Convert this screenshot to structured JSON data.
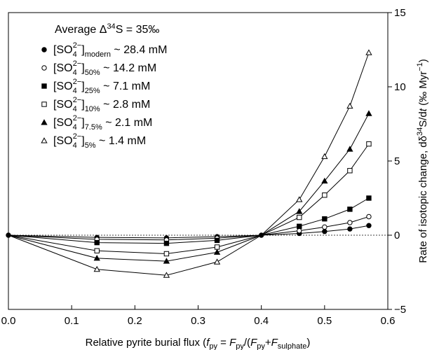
{
  "chart_data": {
    "type": "line",
    "annotation": "Average Δ³⁴S = 35‰",
    "xlabel": "Relative pyrite burial flux (f_py = F_py/(F_py+F_sulphate)",
    "ylabel": "Rate of isotopic change, dδ³⁴S/dt (‰ Myr⁻¹)",
    "xlim": [
      0.0,
      0.6
    ],
    "ylim": [
      -5,
      15
    ],
    "x_ticks": [
      "0.0",
      "0.1",
      "0.2",
      "0.3",
      "0.4",
      "0.5",
      "0.6"
    ],
    "y_ticks": [
      "−5",
      "0",
      "5",
      "10",
      "15"
    ],
    "y_axis_side": "right",
    "reference_line": {
      "y": 0,
      "style": "dotted"
    },
    "grid": false,
    "x": [
      0.0,
      0.14,
      0.25,
      0.33,
      0.4,
      0.46,
      0.5,
      0.54,
      0.57
    ],
    "series": [
      {
        "name": "[SO4 2−]modern ~ 28.4 mM",
        "marker": "filled-circle",
        "values": [
          0,
          -0.15,
          -0.18,
          -0.1,
          0,
          0.12,
          0.25,
          0.42,
          0.65
        ]
      },
      {
        "name": "[SO4 2−]50% ~ 14.2 mM",
        "marker": "open-circle",
        "values": [
          0,
          -0.28,
          -0.32,
          -0.2,
          0,
          0.3,
          0.55,
          0.85,
          1.25
        ]
      },
      {
        "name": "[SO4 2−]25% ~ 7.1 mM",
        "marker": "filled-square",
        "values": [
          0,
          -0.5,
          -0.55,
          -0.35,
          0,
          0.6,
          1.1,
          1.75,
          2.5
        ]
      },
      {
        "name": "[SO4 2−]10% ~ 2.8 mM",
        "marker": "open-square",
        "values": [
          0,
          -1.05,
          -1.25,
          -0.8,
          0,
          1.2,
          2.7,
          4.35,
          6.15
        ]
      },
      {
        "name": "[SO4 2−]7.5% ~ 2.1 mM",
        "marker": "filled-triangle",
        "values": [
          0,
          -1.55,
          -1.75,
          -1.15,
          0,
          1.6,
          3.65,
          5.8,
          8.2
        ]
      },
      {
        "name": "[SO4 2−]5% ~ 1.4 mM",
        "marker": "open-triangle",
        "values": [
          0,
          -2.3,
          -2.7,
          -1.8,
          0,
          2.4,
          5.3,
          8.7,
          12.3
        ]
      }
    ],
    "legend": {
      "title": "Average Δ³⁴S = 35‰",
      "placement": "top-left",
      "entries": [
        {
          "prefix": "[SO",
          "sub": "4",
          "sup": "2−",
          "suffix_sub": "modern",
          "tail": " ~ 28.4 mM"
        },
        {
          "prefix": "[SO",
          "sub": "4",
          "sup": "2−",
          "suffix_sub": "50%",
          "tail": " ~ 14.2 mM"
        },
        {
          "prefix": "[SO",
          "sub": "4",
          "sup": "2−",
          "suffix_sub": "25%",
          "tail": " ~ 7.1 mM"
        },
        {
          "prefix": "[SO",
          "sub": "4",
          "sup": "2−",
          "suffix_sub": "10%",
          "tail": " ~ 2.8 mM"
        },
        {
          "prefix": "[SO",
          "sub": "4",
          "sup": "2−",
          "suffix_sub": "7.5%",
          "tail": " ~ 2.1 mM"
        },
        {
          "prefix": "[SO",
          "sub": "4",
          "sup": "2−",
          "suffix_sub": "5%",
          "tail": " ~ 1.4 mM"
        }
      ]
    }
  }
}
